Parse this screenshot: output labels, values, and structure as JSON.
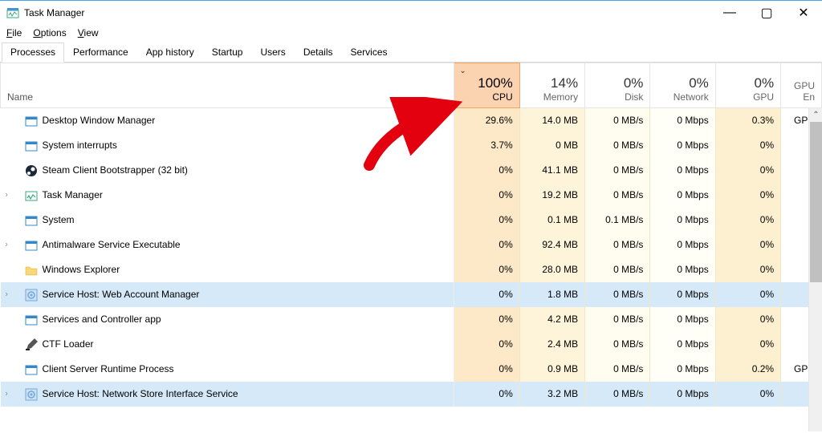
{
  "window": {
    "title": "Task Manager",
    "controls": {
      "min": "—",
      "max": "▢",
      "close": "✕"
    }
  },
  "menubar": {
    "file": "File",
    "options": "Options",
    "view": "View"
  },
  "tabs": [
    "Processes",
    "Performance",
    "App history",
    "Startup",
    "Users",
    "Details",
    "Services"
  ],
  "active_tab_index": 0,
  "columns": {
    "name": "Name",
    "cpu": {
      "value": "100%",
      "label": "CPU",
      "sorted": true,
      "bg": "#fcd3b1",
      "border": "#f4a460"
    },
    "memory": {
      "value": "14%",
      "label": "Memory"
    },
    "disk": {
      "value": "0%",
      "label": "Disk"
    },
    "network": {
      "value": "0%",
      "label": "Network"
    },
    "gpu": {
      "value": "0%",
      "label": "GPU"
    },
    "gpu_engine": {
      "label": "GPU En"
    }
  },
  "cell_colors": {
    "cpu": "#fde8c8",
    "memory": "#fef4da",
    "disk": "#fffcf0",
    "network": "#fffef7",
    "gpu": "#fdf0d0",
    "selected": "#d6e9f8"
  },
  "rows": [
    {
      "expand": false,
      "icon": "window",
      "name": "Desktop Window Manager",
      "cpu": "29.6%",
      "mem": "14.0 MB",
      "disk": "0 MB/s",
      "net": "0 Mbps",
      "gpu": "0.3%",
      "gpuen": "GPU"
    },
    {
      "expand": false,
      "icon": "window",
      "name": "System interrupts",
      "cpu": "3.7%",
      "mem": "0 MB",
      "disk": "0 MB/s",
      "net": "0 Mbps",
      "gpu": "0%",
      "gpuen": ""
    },
    {
      "expand": false,
      "icon": "steam",
      "name": "Steam Client Bootstrapper (32 bit)",
      "cpu": "0%",
      "mem": "41.1 MB",
      "disk": "0 MB/s",
      "net": "0 Mbps",
      "gpu": "0%",
      "gpuen": ""
    },
    {
      "expand": true,
      "icon": "taskmgr",
      "name": "Task Manager",
      "cpu": "0%",
      "mem": "19.2 MB",
      "disk": "0 MB/s",
      "net": "0 Mbps",
      "gpu": "0%",
      "gpuen": ""
    },
    {
      "expand": false,
      "icon": "window",
      "name": "System",
      "cpu": "0%",
      "mem": "0.1 MB",
      "disk": "0.1 MB/s",
      "net": "0 Mbps",
      "gpu": "0%",
      "gpuen": ""
    },
    {
      "expand": true,
      "icon": "window",
      "name": "Antimalware Service Executable",
      "cpu": "0%",
      "mem": "92.4 MB",
      "disk": "0 MB/s",
      "net": "0 Mbps",
      "gpu": "0%",
      "gpuen": ""
    },
    {
      "expand": false,
      "icon": "folder",
      "name": "Windows Explorer",
      "cpu": "0%",
      "mem": "28.0 MB",
      "disk": "0 MB/s",
      "net": "0 Mbps",
      "gpu": "0%",
      "gpuen": ""
    },
    {
      "expand": true,
      "icon": "gear",
      "name": "Service Host: Web Account Manager",
      "cpu": "0%",
      "mem": "1.8 MB",
      "disk": "0 MB/s",
      "net": "0 Mbps",
      "gpu": "0%",
      "gpuen": "",
      "selected": true
    },
    {
      "expand": false,
      "icon": "window",
      "name": "Services and Controller app",
      "cpu": "0%",
      "mem": "4.2 MB",
      "disk": "0 MB/s",
      "net": "0 Mbps",
      "gpu": "0%",
      "gpuen": ""
    },
    {
      "expand": false,
      "icon": "pen",
      "name": "CTF Loader",
      "cpu": "0%",
      "mem": "2.4 MB",
      "disk": "0 MB/s",
      "net": "0 Mbps",
      "gpu": "0%",
      "gpuen": ""
    },
    {
      "expand": false,
      "icon": "window",
      "name": "Client Server Runtime Process",
      "cpu": "0%",
      "mem": "0.9 MB",
      "disk": "0 MB/s",
      "net": "0 Mbps",
      "gpu": "0.2%",
      "gpuen": "GPU"
    },
    {
      "expand": true,
      "icon": "gear",
      "name": "Service Host: Network Store Interface Service",
      "cpu": "0%",
      "mem": "3.2 MB",
      "disk": "0 MB/s",
      "net": "0 Mbps",
      "gpu": "0%",
      "gpuen": "",
      "selected": true
    }
  ],
  "annotation_arrow": {
    "color": "#e3000f",
    "stroke_width": 14
  },
  "icons": {
    "window": "#3388cc",
    "steam": "#1b2838",
    "taskmgr": "#3388cc",
    "folder": "#f8d775",
    "gear": "#6fa8dc",
    "pen": "#444444"
  }
}
